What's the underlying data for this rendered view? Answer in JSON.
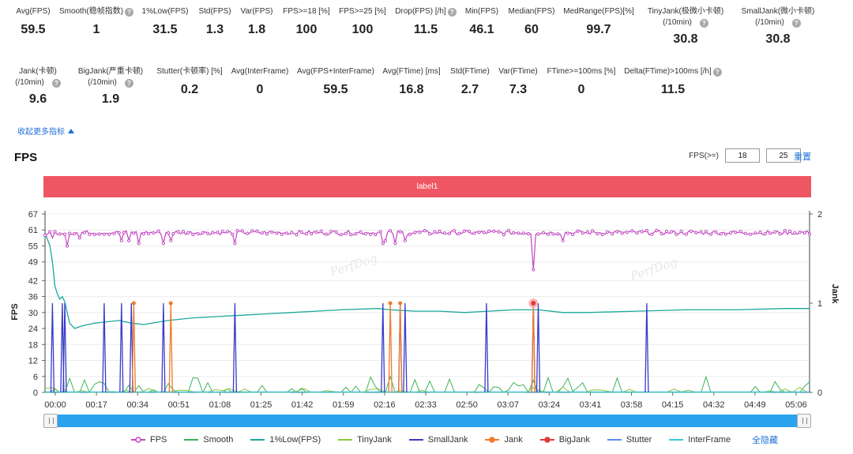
{
  "metrics_row1": [
    {
      "label": "Avg(FPS)",
      "value": "59.5",
      "help": false
    },
    {
      "label": "Smooth(稳帧指数)",
      "value": "1",
      "help": true
    },
    {
      "label": "1%Low(FPS)",
      "value": "31.5",
      "help": false
    },
    {
      "label": "Std(FPS)",
      "value": "1.3",
      "help": false
    },
    {
      "label": "Var(FPS)",
      "value": "1.8",
      "help": false
    },
    {
      "label": "FPS>=18 [%]",
      "value": "100",
      "help": false
    },
    {
      "label": "FPS>=25 [%]",
      "value": "100",
      "help": false
    },
    {
      "label": "Drop(FPS) [/h]",
      "value": "11.5",
      "help": true
    },
    {
      "label": "Min(FPS)",
      "value": "46.1",
      "help": false
    },
    {
      "label": "Median(FPS)",
      "value": "60",
      "help": false
    },
    {
      "label": "MedRange(FPS)[%]",
      "value": "99.7",
      "help": false
    },
    {
      "label": "TinyJank(极微小卡顿)",
      "label2": "(/10min)",
      "value": "30.8",
      "help": true
    },
    {
      "label": "SmallJank(微小卡顿)",
      "label2": "(/10min)",
      "value": "30.8",
      "help": true
    }
  ],
  "metrics_row2": [
    {
      "label": "Jank(卡顿)",
      "label2": "(/10min)",
      "value": "9.6",
      "help": true
    },
    {
      "label": "BigJank(严重卡顿)",
      "label2": "(/10min)",
      "value": "1.9",
      "help": true
    },
    {
      "label": "Stutter(卡顿率) [%]",
      "value": "0.2",
      "help": false
    },
    {
      "label": "Avg(InterFrame)",
      "value": "0",
      "help": false
    },
    {
      "label": "Avg(FPS+InterFrame)",
      "value": "59.5",
      "help": false
    },
    {
      "label": "Avg(FTime) [ms]",
      "value": "16.8",
      "help": false
    },
    {
      "label": "Std(FTime)",
      "value": "2.7",
      "help": false
    },
    {
      "label": "Var(FTime)",
      "value": "7.3",
      "help": false
    },
    {
      "label": "FTime>=100ms [%]",
      "value": "0",
      "help": false
    },
    {
      "label": "Delta(FTime)>100ms [/h]",
      "value": "11.5",
      "help": true
    }
  ],
  "collapse_label": "收起更多指标",
  "section_title": "FPS",
  "threshold": {
    "label": "FPS(>=)",
    "value1": "18",
    "value2": "25",
    "reset_label": "重置"
  },
  "label_bar_text": "label1",
  "watermark": "PerfDog",
  "hide_all_label": "全隐藏",
  "colors": {
    "FPS": "#c247c2",
    "Smooth": "#3cb35a",
    "1%Low(FPS)": "#1aa89a",
    "TinyJank": "#8cc63f",
    "SmallJank": "#3a3ac8",
    "Jank": "#f07a2a",
    "BigJank": "#e03a3a",
    "Stutter": "#5a8df0",
    "InterFrame": "#3ac8d8"
  },
  "chart_data": {
    "type": "line",
    "y_axis_left": {
      "label": "FPS",
      "range": [
        0,
        67
      ],
      "ticks": [
        0,
        6,
        12,
        18,
        24,
        30,
        36,
        42,
        49,
        55,
        61,
        67
      ]
    },
    "y_axis_right": {
      "label": "Jank",
      "range": [
        0,
        2
      ],
      "ticks": [
        0,
        1,
        2
      ]
    },
    "x_axis": {
      "range_s": [
        0,
        310
      ],
      "ticks": [
        "00:00",
        "00:17",
        "00:34",
        "00:51",
        "01:08",
        "01:25",
        "01:42",
        "01:59",
        "02:16",
        "02:33",
        "02:50",
        "03:07",
        "03:24",
        "03:41",
        "03:58",
        "04:15",
        "04:32",
        "04:49",
        "05:06"
      ]
    },
    "legend": [
      "FPS",
      "Smooth",
      "1%Low(FPS)",
      "TinyJank",
      "SmallJank",
      "Jank",
      "BigJank",
      "Stutter",
      "InterFrame"
    ],
    "series": [
      {
        "name": "FPS",
        "axis": "left",
        "baseline": 60,
        "start": [
          [
            0,
            59
          ],
          [
            3,
            58
          ],
          [
            6,
            59.5
          ]
        ],
        "dips": [
          [
            9,
            55
          ],
          [
            14,
            58
          ],
          [
            31,
            57
          ],
          [
            38,
            56
          ],
          [
            34,
            57
          ],
          [
            48,
            56
          ],
          [
            51,
            57
          ],
          [
            77,
            56
          ],
          [
            137,
            56
          ],
          [
            138,
            57
          ],
          [
            142,
            56
          ],
          [
            146,
            57
          ],
          [
            198,
            46.1
          ],
          [
            210,
            57
          ]
        ]
      },
      {
        "name": "1%Low(FPS)",
        "axis": "left",
        "points": [
          [
            0,
            60
          ],
          [
            2,
            55
          ],
          [
            3,
            49
          ],
          [
            4,
            40
          ],
          [
            5,
            37
          ],
          [
            6,
            35
          ],
          [
            7,
            36
          ],
          [
            8,
            34
          ],
          [
            9,
            30
          ],
          [
            10,
            26
          ],
          [
            12,
            24
          ],
          [
            15,
            25
          ],
          [
            20,
            26
          ],
          [
            30,
            27
          ],
          [
            35,
            26
          ],
          [
            40,
            25.5
          ],
          [
            50,
            27
          ],
          [
            60,
            28
          ],
          [
            70,
            28.5
          ],
          [
            80,
            29
          ],
          [
            90,
            29.5
          ],
          [
            100,
            30
          ],
          [
            110,
            30.5
          ],
          [
            120,
            31
          ],
          [
            135,
            31.5
          ],
          [
            140,
            31
          ],
          [
            150,
            30.5
          ],
          [
            160,
            30.5
          ],
          [
            170,
            30
          ],
          [
            180,
            30.5
          ],
          [
            190,
            31
          ],
          [
            200,
            31
          ],
          [
            210,
            30
          ],
          [
            220,
            30
          ],
          [
            240,
            30.5
          ],
          [
            260,
            31
          ],
          [
            280,
            31
          ],
          [
            300,
            31.5
          ],
          [
            310,
            31.5
          ]
        ]
      },
      {
        "name": "SmallJank",
        "axis": "right",
        "spikes": [
          3,
          7,
          8,
          24,
          31,
          35,
          48,
          77,
          137,
          144,
          146,
          179,
          198,
          200,
          244
        ]
      },
      {
        "name": "Jank",
        "axis": "right",
        "spikes": [
          36,
          51,
          140,
          144,
          198
        ]
      },
      {
        "name": "BigJank",
        "axis": "right",
        "spikes": [
          198
        ]
      },
      {
        "name": "Smooth",
        "axis": "left",
        "noise_max": 6
      },
      {
        "name": "TinyJank",
        "axis": "left",
        "noise_max": 2
      },
      {
        "name": "Stutter",
        "axis": "left",
        "flat": 0
      },
      {
        "name": "InterFrame",
        "axis": "left",
        "flat": 0
      }
    ]
  }
}
